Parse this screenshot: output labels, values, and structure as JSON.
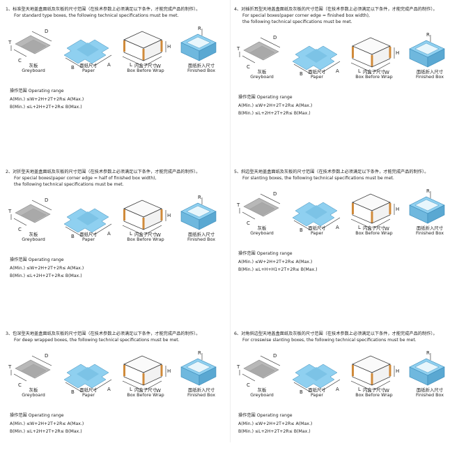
{
  "labels": {
    "greyboard_cn": "灰板",
    "greyboard_en": "Greyboard",
    "paper_cn": "面纸尺寸",
    "paper_en": "Paper",
    "inner_cn": "内盒子尺寸",
    "inner_en": "Box Before Wrap",
    "finished_cn": "面纸折入尺寸",
    "finished_en": "Finished Box",
    "operating_range": "操作范围 Operating range"
  },
  "panels": [
    {
      "title": "1、标准型天地盖盒面纸及灰板的尺寸范围（在技术参数上必须满足以下条件，才能完成产品的制作）。",
      "subtitles": [
        "For standard type boxes, the following technical specifications must be met."
      ],
      "formulas": [
        "A(Min.) ≤W+2H+2T+2R≤ A(Max.)",
        "B(Min.) ≤L+2H+2T+2R≤ B(Max.)"
      ]
    },
    {
      "title": "2、对折型天地盖盒面纸及灰板的尺寸范围（在技术参数上必须满足以下条件，才能完成产品的制作）。",
      "subtitles": [
        "For special boxes(paper corner edge = half of finished box width),",
        "the following technical specifications must be met."
      ],
      "formulas": [
        "A(Min.) ≤W+2H+2T+2R≤ A(Max.)",
        "B(Min.) ≤L+2H+2T+2R≤ B(Max.)"
      ]
    },
    {
      "title": "3、包深型天地盖盒面纸及灰板的尺寸范围（在技术参数上必须满足以下条件，才能完成产品的制作）。",
      "subtitles": [
        "For deep wrapped boxes, the following technical specifications must be met."
      ],
      "formulas": [
        "A(Min.) ≤W+2H+2T+2R≤ A(Max.)",
        "B(Min.) ≤L+2H+2T+2R≤ B(Max.)"
      ]
    },
    {
      "title": "4、对插折耳型天地盖盒面纸及灰板的尺寸范围（在技术参数上必须满足以下条件，才能完成产品的制作）。",
      "subtitles": [
        "For special boxes(paper corner edge = finished box width),",
        "the following technical specifications must be met."
      ],
      "formulas": [
        "A(Min.) ≤W+2H+2T+2R≤ A(Max.)",
        "B(Min.) ≤L+2H+2T+2R≤ B(Max.)"
      ]
    },
    {
      "title": "5、斜边型天地盖盒面纸及灰板的尺寸范围（在技术参数上必须满足以下条件，才能完成产品的制作）。",
      "subtitles": [
        "For slanting boxes, the following technical specifications must be met."
      ],
      "formulas": [
        "A(Min.) ≤W+2H+2T+2R≤ A(Max.)",
        "B(Min.) ≤L+H+H1+2T+2R≤ B(Max.)"
      ]
    },
    {
      "title": "6、对角斜边型天地盖盒面纸及灰板的尺寸范围（在技术参数上必须满足以下条件，才能完成产品的制作）。",
      "subtitles": [
        "For crosswise slanting boxes, the following technical specifications must be met."
      ],
      "formulas": [
        "A(Min.) ≤W+2H+2T+2R≤ A(Max.)",
        "B(Min.) ≤L+2H+2T+2R≤ B(Max.)"
      ]
    }
  ],
  "dims": {
    "T": "T",
    "C": "C",
    "D": "D",
    "B": "B",
    "A": "A",
    "E": "E",
    "F": "F",
    "H": "H",
    "H1": "H1",
    "L": "L",
    "W": "W",
    "R": "R"
  },
  "colors": {
    "greyboard": "#b4b4b4",
    "paper": "#8fd0f0",
    "box_line": "#333333",
    "corner": "#d08a3a"
  }
}
